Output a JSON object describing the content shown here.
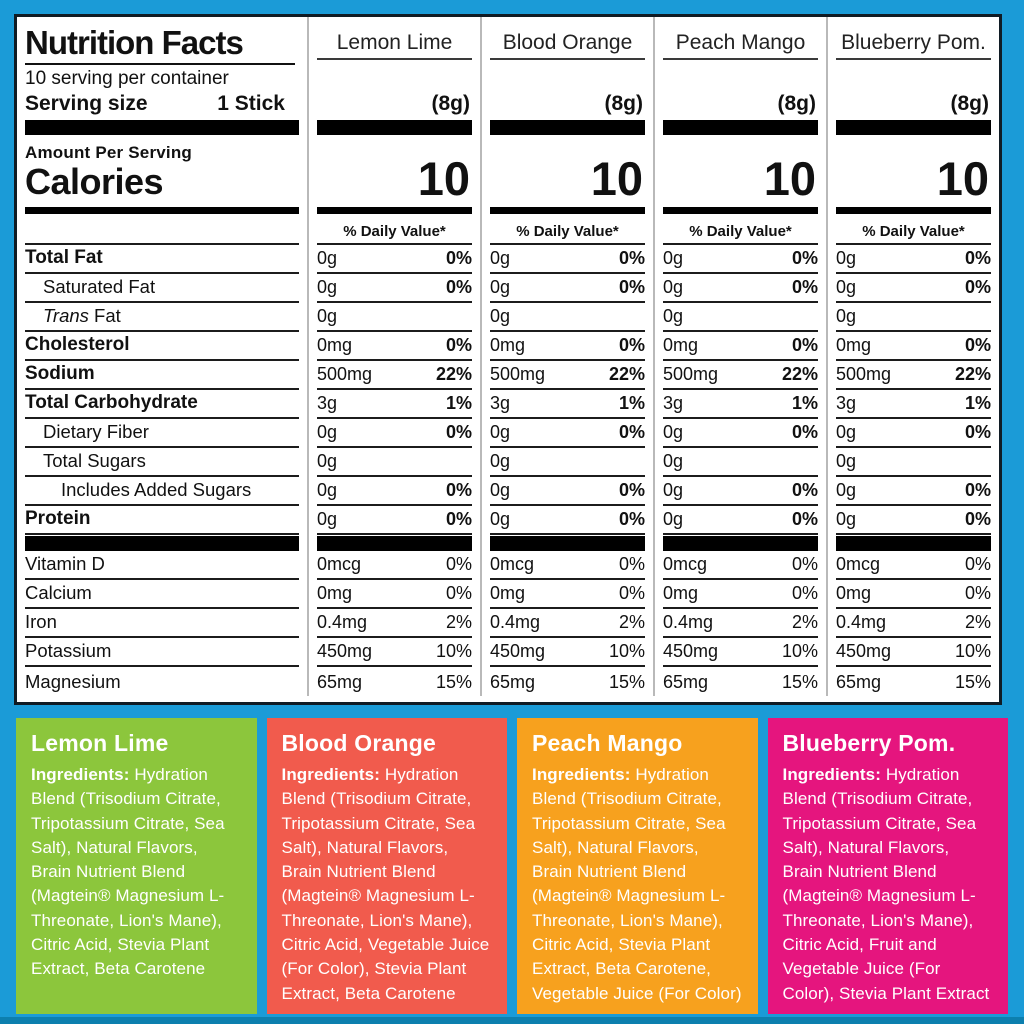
{
  "colors": {
    "background": "#1b9bd7",
    "panel_border": "#101b24",
    "divider": "#b9b9b9",
    "hairline": "#1c1c1c",
    "bar": "#000000"
  },
  "header": {
    "title": "Nutrition Facts",
    "servings_per_container": "10 serving per container",
    "serving_size_label": "Serving size",
    "serving_size_value": "1 Stick",
    "amount_per_serving": "Amount Per Serving",
    "calories_label": "Calories",
    "daily_value_header": "% Daily Value*"
  },
  "flavors": [
    {
      "name": "Lemon Lime",
      "serving_weight": "(8g)",
      "calories": "10",
      "color": "#8cc63c",
      "ingredients_label": "Ingredients:",
      "ingredients_text": " Hydration Blend (Trisodium Citrate, Tripotassium Citrate, Sea Salt), Natural Flavors, Brain Nutrient Blend (Magtein® Magnesium L-Threonate, Lion's Mane), Citric Acid, Stevia Plant Extract, Beta Carotene"
    },
    {
      "name": "Blood Orange",
      "serving_weight": "(8g)",
      "calories": "10",
      "color": "#f15b4d",
      "ingredients_label": "Ingredients:",
      "ingredients_text": " Hydration Blend (Trisodium Citrate, Tripotassium Citrate, Sea Salt), Natural Flavors, Brain Nutrient Blend (Magtein® Magnesium L-Threonate, Lion's Mane), Citric Acid, Vegetable Juice (For Color), Stevia Plant Extract, Beta Carotene"
    },
    {
      "name": "Peach Mango",
      "serving_weight": "(8g)",
      "calories": "10",
      "color": "#f7a11e",
      "ingredients_label": "Ingredients:",
      "ingredients_text": " Hydration Blend (Trisodium Citrate, Tripotassium Citrate, Sea Salt), Natural Flavors, Brain Nutrient Blend (Magtein® Magnesium L-Threonate, Lion's Mane), Citric Acid, Stevia Plant Extract, Beta Carotene, Vegetable Juice (For Color)"
    },
    {
      "name": "Blueberry Pom.",
      "serving_weight": "(8g)",
      "calories": "10",
      "color": "#e5157e",
      "ingredients_label": "Ingredients:",
      "ingredients_text": " Hydration Blend (Trisodium Citrate, Tripotassium Citrate, Sea Salt), Natural Flavors, Brain Nutrient Blend (Magtein® Magnesium L-Threonate, Lion's Mane), Citric Acid, Fruit and Vegetable Juice (For Color), Stevia Plant Extract"
    }
  ],
  "nutrient_rows": [
    {
      "label": "Total Fat",
      "bold": true,
      "indent": 0,
      "amounts": [
        "0g",
        "0g",
        "0g",
        "0g"
      ],
      "dvs": [
        "0%",
        "0%",
        "0%",
        "0%"
      ],
      "dv_bold": true
    },
    {
      "label": "Saturated Fat",
      "bold": false,
      "indent": 1,
      "amounts": [
        "0g",
        "0g",
        "0g",
        "0g"
      ],
      "dvs": [
        "0%",
        "0%",
        "0%",
        "0%"
      ],
      "dv_bold": true
    },
    {
      "italic_prefix": "Trans",
      "label": " Fat",
      "bold": false,
      "indent": 1,
      "amounts": [
        "0g",
        "0g",
        "0g",
        "0g"
      ],
      "dvs": null
    },
    {
      "label": "Cholesterol",
      "bold": true,
      "indent": 0,
      "amounts": [
        "0mg",
        "0mg",
        "0mg",
        "0mg"
      ],
      "dvs": [
        "0%",
        "0%",
        "0%",
        "0%"
      ],
      "dv_bold": true
    },
    {
      "label": "Sodium",
      "bold": true,
      "indent": 0,
      "amounts": [
        "500mg",
        "500mg",
        "500mg",
        "500mg"
      ],
      "dvs": [
        "22%",
        "22%",
        "22%",
        "22%"
      ],
      "dv_bold": true
    },
    {
      "label": "Total Carbohydrate",
      "bold": true,
      "indent": 0,
      "amounts": [
        "3g",
        "3g",
        "3g",
        "3g"
      ],
      "dvs": [
        "1%",
        "1%",
        "1%",
        "1%"
      ],
      "dv_bold": true
    },
    {
      "label": "Dietary Fiber",
      "bold": false,
      "indent": 1,
      "amounts": [
        "0g",
        "0g",
        "0g",
        "0g"
      ],
      "dvs": [
        "0%",
        "0%",
        "0%",
        "0%"
      ],
      "dv_bold": true
    },
    {
      "label": "Total Sugars",
      "bold": false,
      "indent": 1,
      "amounts": [
        "0g",
        "0g",
        "0g",
        "0g"
      ],
      "dvs": null
    },
    {
      "label": "Includes Added Sugars",
      "bold": false,
      "indent": 2,
      "amounts": [
        "0g",
        "0g",
        "0g",
        "0g"
      ],
      "dvs": [
        "0%",
        "0%",
        "0%",
        "0%"
      ],
      "dv_bold": true
    },
    {
      "label": "Protein",
      "bold": true,
      "indent": 0,
      "amounts": [
        "0g",
        "0g",
        "0g",
        "0g"
      ],
      "dvs": [
        "0%",
        "0%",
        "0%",
        "0%"
      ],
      "dv_bold": true
    },
    {
      "type": "bar"
    },
    {
      "label": "Vitamin D",
      "bold": false,
      "indent": 0,
      "amounts": [
        "0mcg",
        "0mcg",
        "0mcg",
        "0mcg"
      ],
      "dvs": [
        "0%",
        "0%",
        "0%",
        "0%"
      ],
      "dv_bold": false
    },
    {
      "label": "Calcium",
      "bold": false,
      "indent": 0,
      "amounts": [
        "0mg",
        "0mg",
        "0mg",
        "0mg"
      ],
      "dvs": [
        "0%",
        "0%",
        "0%",
        "0%"
      ],
      "dv_bold": false
    },
    {
      "label": "Iron",
      "bold": false,
      "indent": 0,
      "amounts": [
        "0.4mg",
        "0.4mg",
        "0.4mg",
        "0.4mg"
      ],
      "dvs": [
        "2%",
        "2%",
        "2%",
        "2%"
      ],
      "dv_bold": false
    },
    {
      "label": "Potassium",
      "bold": false,
      "indent": 0,
      "amounts": [
        "450mg",
        "450mg",
        "450mg",
        "450mg"
      ],
      "dvs": [
        "10%",
        "10%",
        "10%",
        "10%"
      ],
      "dv_bold": false
    },
    {
      "label": "Magnesium",
      "bold": false,
      "indent": 0,
      "amounts": [
        "65mg",
        "65mg",
        "65mg",
        "65mg"
      ],
      "dvs": [
        "15%",
        "15%",
        "15%",
        "15%"
      ],
      "dv_bold": false,
      "no_line": true
    }
  ]
}
